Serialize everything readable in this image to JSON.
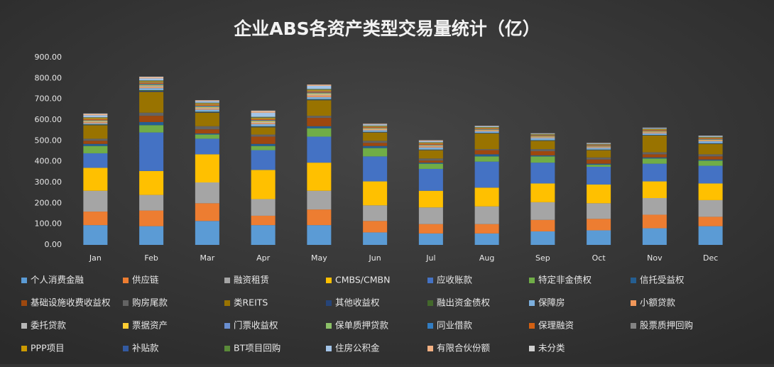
{
  "chart_data": {
    "type": "stacked_bar",
    "title": "企业ABS各资产类型交易量统计（亿）",
    "categories": [
      "Jan",
      "Feb",
      "Mar",
      "Apr",
      "May",
      "Jun",
      "Jul",
      "Aug",
      "Sep",
      "Oct",
      "Nov",
      "Dec"
    ],
    "ylim": [
      0,
      900
    ],
    "yticks": [
      {
        "value": 0,
        "label": "0.00"
      },
      {
        "value": 100,
        "label": "100.00"
      },
      {
        "value": 200,
        "label": "200.00"
      },
      {
        "value": 300,
        "label": "300.00"
      },
      {
        "value": 400,
        "label": "400.00"
      },
      {
        "value": 500,
        "label": "500.00"
      },
      {
        "value": 600,
        "label": "600.00"
      },
      {
        "value": 700,
        "label": "700.00"
      },
      {
        "value": 800,
        "label": "800.00"
      },
      {
        "value": 900,
        "label": "900.00"
      }
    ],
    "grid": false,
    "legend": "bottom",
    "series": [
      {
        "name": "个人消费金融",
        "color": "#5b9bd5",
        "values": [
          95,
          90,
          115,
          95,
          95,
          60,
          55,
          55,
          65,
          70,
          80,
          90
        ]
      },
      {
        "name": "供应链",
        "color": "#ed7d31",
        "values": [
          65,
          75,
          85,
          45,
          75,
          55,
          45,
          45,
          55,
          55,
          65,
          45
        ]
      },
      {
        "name": "融资租赁",
        "color": "#a5a5a5",
        "values": [
          100,
          75,
          100,
          80,
          90,
          75,
          80,
          85,
          85,
          75,
          80,
          80
        ]
      },
      {
        "name": "CMBS/CMBN",
        "color": "#ffc000",
        "values": [
          110,
          115,
          135,
          140,
          135,
          115,
          80,
          90,
          90,
          90,
          80,
          80
        ]
      },
      {
        "name": "应收账款",
        "color": "#4472c4",
        "values": [
          70,
          185,
          75,
          95,
          125,
          120,
          105,
          125,
          100,
          85,
          85,
          85
        ]
      },
      {
        "name": "特定非金债权",
        "color": "#70ad47",
        "values": [
          35,
          35,
          20,
          20,
          40,
          40,
          25,
          25,
          30,
          10,
          25,
          25
        ]
      },
      {
        "name": "信托受益权",
        "color": "#255e91",
        "values": [
          10,
          15,
          5,
          10,
          10,
          10,
          5,
          10,
          5,
          5,
          5,
          5
        ]
      },
      {
        "name": "基础设施收费收益权",
        "color": "#9e480e",
        "values": [
          15,
          30,
          20,
          35,
          40,
          15,
          10,
          20,
          20,
          20,
          15,
          15
        ]
      },
      {
        "name": "购房尾款",
        "color": "#636363",
        "values": [
          10,
          15,
          15,
          10,
          10,
          10,
          10,
          5,
          10,
          10,
          10,
          10
        ]
      },
      {
        "name": "类REITS",
        "color": "#997300",
        "values": [
          65,
          100,
          65,
          35,
          75,
          40,
          40,
          75,
          40,
          35,
          80,
          50
        ]
      },
      {
        "name": "其他收益权",
        "color": "#264478",
        "values": [
          2,
          5,
          3,
          3,
          3,
          2,
          2,
          2,
          2,
          2,
          2,
          2
        ]
      },
      {
        "name": "融出资金债权",
        "color": "#43682b",
        "values": [
          2,
          3,
          2,
          2,
          2,
          1,
          1,
          1,
          1,
          1,
          1,
          1
        ]
      },
      {
        "name": "保障房",
        "color": "#7cafdd",
        "values": [
          5,
          10,
          10,
          10,
          10,
          8,
          10,
          8,
          10,
          8,
          8,
          10
        ]
      },
      {
        "name": "小额贷款",
        "color": "#f1975a",
        "values": [
          5,
          5,
          5,
          5,
          8,
          3,
          5,
          3,
          3,
          3,
          4,
          3
        ]
      },
      {
        "name": "委托贷款",
        "color": "#b7b7b7",
        "values": [
          3,
          5,
          4,
          5,
          5,
          3,
          3,
          2,
          2,
          2,
          2,
          2
        ]
      },
      {
        "name": "票据资产",
        "color": "#ffcd33",
        "values": [
          3,
          3,
          3,
          3,
          3,
          2,
          2,
          2,
          2,
          2,
          2,
          2
        ]
      },
      {
        "name": "门票收益权",
        "color": "#698ed0",
        "values": [
          2,
          2,
          2,
          2,
          2,
          1,
          1,
          1,
          1,
          1,
          1,
          1
        ]
      },
      {
        "name": "保单质押贷款",
        "color": "#8cc168",
        "values": [
          1,
          2,
          2,
          2,
          2,
          1,
          1,
          1,
          1,
          1,
          1,
          1
        ]
      },
      {
        "name": "同业借款",
        "color": "#327dc2",
        "values": [
          1,
          3,
          2,
          2,
          2,
          1,
          1,
          1,
          1,
          1,
          1,
          1
        ]
      },
      {
        "name": "保理融资",
        "color": "#d26012",
        "values": [
          5,
          5,
          5,
          5,
          5,
          4,
          5,
          3,
          3,
          3,
          4,
          4
        ]
      },
      {
        "name": "股票质押回购",
        "color": "#848484",
        "values": [
          2,
          3,
          2,
          2,
          3,
          2,
          2,
          2,
          2,
          2,
          2,
          2
        ]
      },
      {
        "name": "PPP项目",
        "color": "#cc9a00",
        "values": [
          5,
          5,
          5,
          5,
          5,
          3,
          3,
          3,
          2,
          2,
          3,
          3
        ]
      },
      {
        "name": "补贴款",
        "color": "#335aa1",
        "values": [
          1,
          2,
          2,
          2,
          2,
          1,
          1,
          1,
          1,
          1,
          1,
          1
        ]
      },
      {
        "name": "BT项目回购",
        "color": "#5a8a39",
        "values": [
          1,
          2,
          1,
          2,
          2,
          1,
          1,
          1,
          1,
          1,
          1,
          1
        ]
      },
      {
        "name": "住房公积金",
        "color": "#a3c4e8",
        "values": [
          10,
          10,
          8,
          20,
          15,
          6,
          6,
          4,
          2,
          3,
          3,
          4
        ]
      },
      {
        "name": "有限合伙份额",
        "color": "#f4b183",
        "values": [
          5,
          5,
          3,
          7,
          5,
          2,
          3,
          1,
          1,
          1,
          1,
          1
        ]
      },
      {
        "name": "未分类",
        "color": "#d0d0d0",
        "values": [
          3,
          3,
          1,
          3,
          1,
          1,
          1,
          1,
          1,
          1,
          1,
          1
        ]
      }
    ]
  }
}
